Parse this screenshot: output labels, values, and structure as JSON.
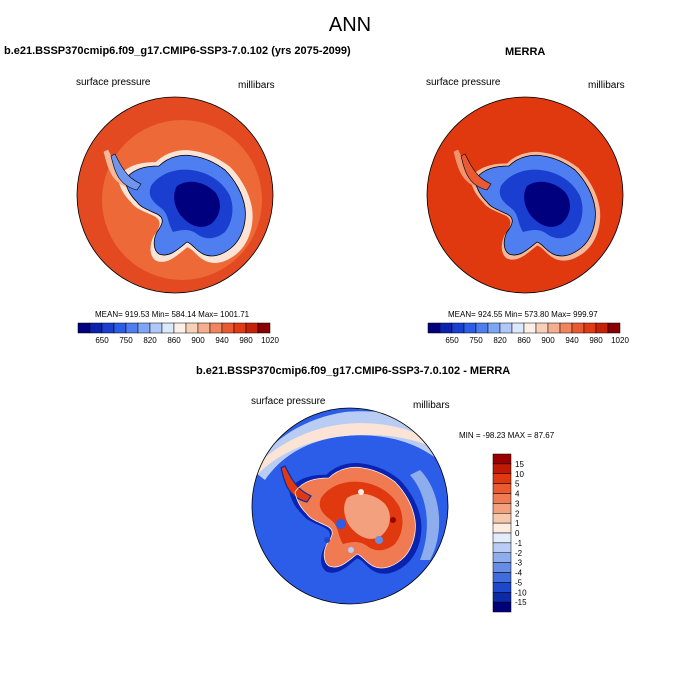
{
  "title": "ANN",
  "panels": [
    {
      "title": "b.e21.BSSP370cmip6.f09_g17.CMIP6-SSP3-7.0.102 (yrs 2075-2099)",
      "variable": "surface pressure",
      "units": "millibars",
      "stats": "MEAN= 919.53  Min= 584.14  Max= 1001.71"
    },
    {
      "title": "MERRA",
      "variable": "surface pressure",
      "units": "millibars",
      "stats": "MEAN= 924.55  Min= 573.80  Max= 999.97"
    },
    {
      "title": "b.e21.BSSP370cmip6.f09_g17.CMIP6-SSP3-7.0.102 - MERRA",
      "variable": "surface pressure",
      "units": "millibars",
      "stats": "MIN = -98.23 MAX =  87.67"
    }
  ],
  "chart_data": [
    {
      "type": "heatmap",
      "projection": "south-polar stereographic",
      "colorbar": {
        "orientation": "horizontal",
        "levels": [
          "650",
          "750",
          "820",
          "860",
          "900",
          "940",
          "980",
          "1020"
        ],
        "colors": [
          "#00007f",
          "#0a22b0",
          "#1a3fd0",
          "#2b5de8",
          "#4f7ef0",
          "#7fa6f5",
          "#b0c8f8",
          "#dce8fb",
          "#fdf0e8",
          "#f8d0b8",
          "#f5ae8f",
          "#f0845f",
          "#ea5a30",
          "#e23a14",
          "#c62208",
          "#8a0000"
        ]
      }
    },
    {
      "type": "heatmap",
      "projection": "south-polar stereographic",
      "colorbar": {
        "orientation": "horizontal",
        "levels": [
          "650",
          "750",
          "820",
          "860",
          "900",
          "940",
          "980",
          "1020"
        ],
        "colors": [
          "#00007f",
          "#0a22b0",
          "#1a3fd0",
          "#2b5de8",
          "#4f7ef0",
          "#7fa6f5",
          "#b0c8f8",
          "#dce8fb",
          "#fdf0e8",
          "#f8d0b8",
          "#f5ae8f",
          "#f0845f",
          "#ea5a30",
          "#e23a14",
          "#c62208",
          "#8a0000"
        ]
      }
    },
    {
      "type": "heatmap",
      "projection": "south-polar stereographic",
      "colorbar": {
        "orientation": "vertical",
        "levels": [
          "15",
          "10",
          "5",
          "4",
          "3",
          "2",
          "1",
          "0",
          "-1",
          "-2",
          "-3",
          "-4",
          "-5",
          "-10",
          "-15"
        ],
        "colors": [
          "#9a0000",
          "#c01a05",
          "#e0380f",
          "#ea5a2e",
          "#f07a52",
          "#f3a07e",
          "#f8c8ad",
          "#fdecdf",
          "#e2ecfa",
          "#b9cdf4",
          "#8eadec",
          "#668ce4",
          "#3f6ddb",
          "#1e48cc",
          "#0a2aa8",
          "#00007a"
        ]
      }
    }
  ]
}
